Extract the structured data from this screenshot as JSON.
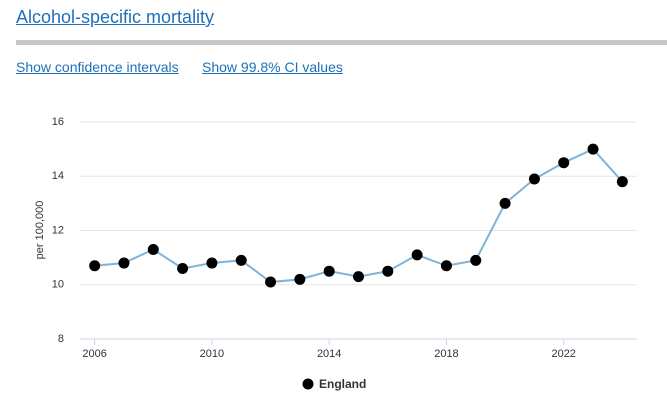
{
  "header": {
    "title": "Alcohol-specific mortality"
  },
  "links": [
    "Show confidence intervals",
    "Show 99.8% CI values"
  ],
  "chart_data": {
    "type": "line",
    "y_label": "per 100,000",
    "x": [
      2006,
      2007,
      2008,
      2009,
      2010,
      2011,
      2012,
      2013,
      2014,
      2015,
      2016,
      2017,
      2018,
      2019,
      2020,
      2021,
      2022,
      2023,
      2024
    ],
    "series": [
      {
        "name": "England",
        "color": "#7fb3d9",
        "marker_color": "#000000",
        "values": [
          10.7,
          10.8,
          11.3,
          10.6,
          10.8,
          10.9,
          10.1,
          10.2,
          10.5,
          10.3,
          10.5,
          11.1,
          10.7,
          10.9,
          13.0,
          13.9,
          14.5,
          15.0,
          13.8
        ]
      }
    ],
    "xlim": [
      2005.5,
      2024.5
    ],
    "xticks": [
      2006,
      2010,
      2014,
      2018,
      2022
    ],
    "ylim": [
      8,
      16
    ],
    "yticks": [
      8,
      10,
      12,
      14,
      16
    ],
    "grid": true,
    "legend": "bottom"
  }
}
